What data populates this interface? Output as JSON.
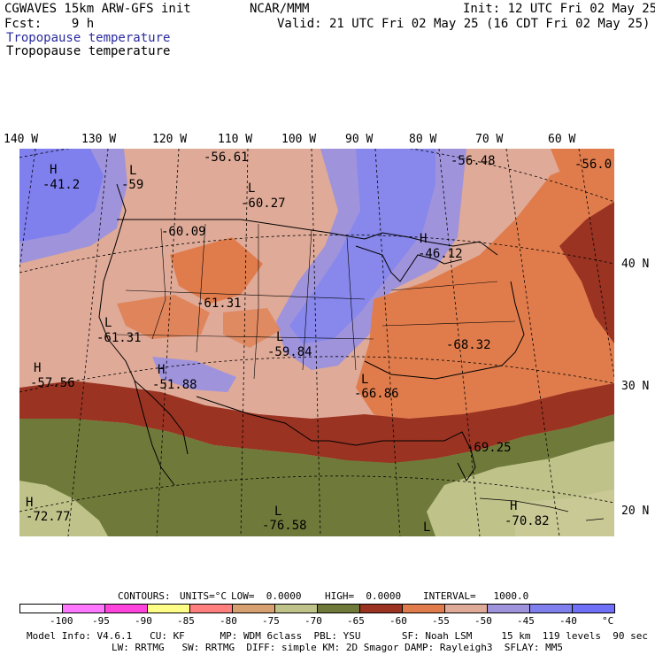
{
  "header": {
    "model": "CGWAVES 15km ARW-GFS init",
    "org": "NCAR/MMM",
    "init": "Init: 12 UTC Fri 02 May 25",
    "fcst": "Fcst:    9 h",
    "valid": "Valid: 21 UTC Fri 02 May 25 (16 CDT Fri 02 May 25)",
    "field_title_blue": "Tropopause temperature",
    "field_title_black": "Tropopause temperature"
  },
  "lon_labels": [
    "140 W",
    "130 W",
    "120 W",
    "110 W",
    "100 W",
    "90 W",
    "80 W",
    "70 W",
    "60 W"
  ],
  "lat_labels": [
    "40 N",
    "30 N",
    "20 N"
  ],
  "extrema": [
    {
      "hl": "H",
      "value": "-41.2"
    },
    {
      "hl": "L",
      "value": "-59"
    },
    {
      "hl": "",
      "value": "-56.61"
    },
    {
      "hl": "L",
      "value": "-60.27"
    },
    {
      "hl": "",
      "value": "-56.48"
    },
    {
      "hl": "",
      "value": "-56.0"
    },
    {
      "hl": "",
      "value": "-60.09"
    },
    {
      "hl": "H",
      "value": "-46.12"
    },
    {
      "hl": "",
      "value": "-61.31"
    },
    {
      "hl": "L",
      "value": "-61.31"
    },
    {
      "hl": "L",
      "value": "-59.84"
    },
    {
      "hl": "",
      "value": "-68.32"
    },
    {
      "hl": "H",
      "value": "-57.56"
    },
    {
      "hl": "H",
      "value": "-51.88"
    },
    {
      "hl": "L",
      "value": "-66.86"
    },
    {
      "hl": "",
      "value": "-69.25"
    },
    {
      "hl": "H",
      "value": "-72.77"
    },
    {
      "hl": "L",
      "value": "-76.58"
    },
    {
      "hl": "H",
      "value": "-70.82"
    },
    {
      "hl": "L",
      "value": ""
    }
  ],
  "contours_line": {
    "contours": "CONTOURS:",
    "units": "UNITS=°C",
    "low": "LOW=  0.0000",
    "high": "HIGH=  0.0000",
    "interval": "INTERVAL=   1000.0"
  },
  "colorbar": {
    "colors": [
      "#ffffff",
      "#ff77ff",
      "#ff44dd",
      "#ffff88",
      "#ff7f7f",
      "#d7a070",
      "#bfc38a",
      "#6f7a3a",
      "#9a3322",
      "#e07c4c",
      "#dfaa98",
      "#9f93dc",
      "#7f7fee",
      "#6f6ff7"
    ],
    "ticks": [
      "-100",
      "-95",
      "-90",
      "-85",
      "-80",
      "-75",
      "-70",
      "-65",
      "-60",
      "-55",
      "-50",
      "-45",
      "-40",
      "°C"
    ]
  },
  "footer": {
    "line1": "Model Info: V4.6.1   CU: KF      MP: WDM 6class  PBL: YSU       SF: Noah LSM     15 km  119 levels  90 sec",
    "line2": "LW: RRTMG   SW: RRTMG  DIFF: simple KM: 2D Smagor DAMP: Rayleigh3  SFLAY: MM5"
  }
}
